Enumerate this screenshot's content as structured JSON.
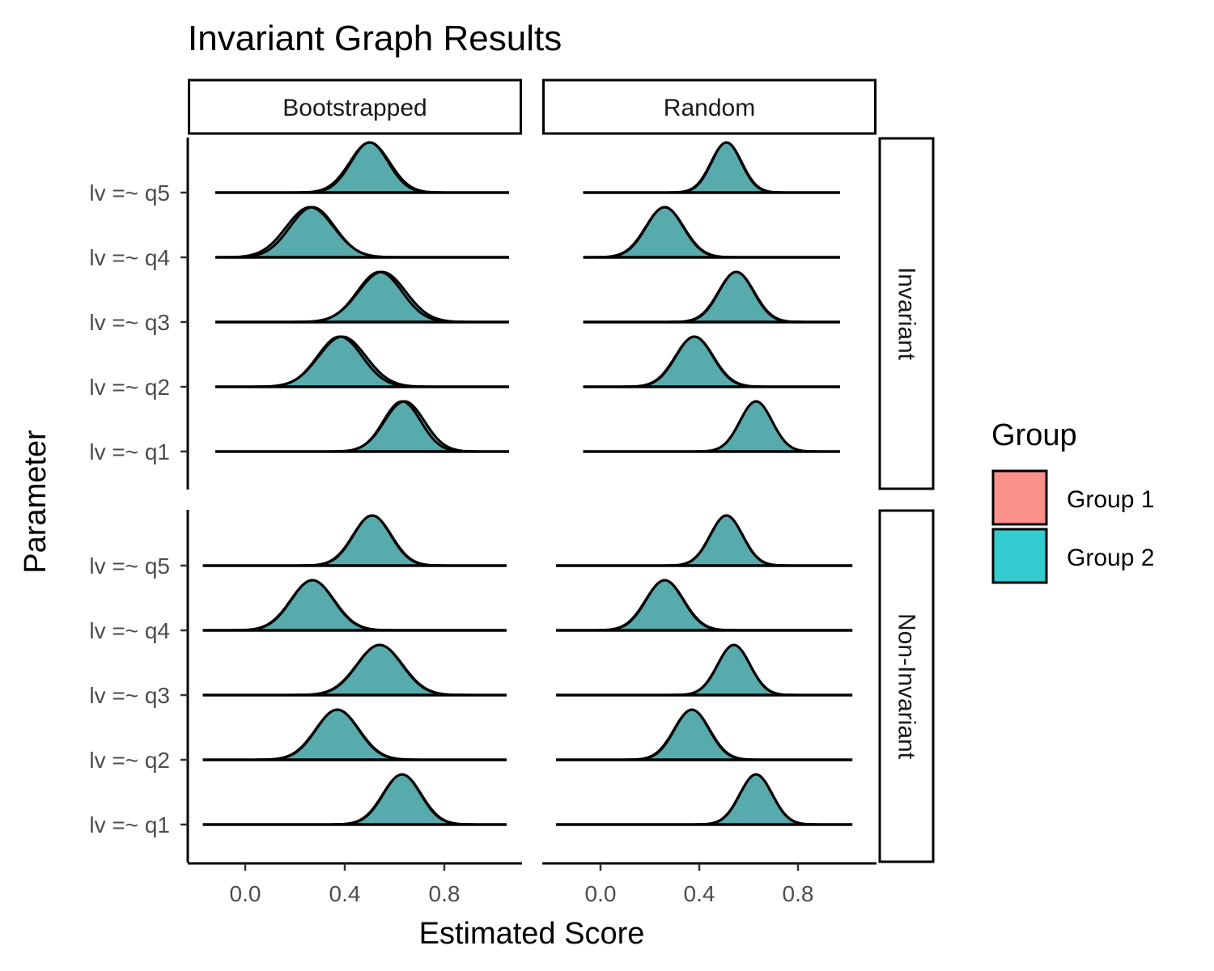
{
  "chart_data": {
    "type": "ridgeline",
    "title": "Invariant Graph Results",
    "xlabel": "Estimated Score",
    "ylabel": "Parameter",
    "x_ticks": [
      0.0,
      0.4,
      0.8
    ],
    "x_tick_labels": [
      "0.0",
      "0.4",
      "0.8"
    ],
    "xlim": [
      -0.2,
      1.1
    ],
    "columns": [
      "Bootstrapped",
      "Random"
    ],
    "rows": [
      "Invariant",
      "Non-Invariant"
    ],
    "parameters": [
      "lv =~ q1",
      "lv =~ q2",
      "lv =~ q3",
      "lv =~ q4",
      "lv =~ q5"
    ],
    "legend": {
      "title": "Group",
      "position": "right",
      "entries": [
        {
          "name": "Group 1",
          "color": "#F8766D"
        },
        {
          "name": "Group 2",
          "color": "#00BFC4"
        }
      ]
    },
    "panels": [
      {
        "column": "Bootstrapped",
        "row": "Invariant",
        "x_range": [
          -0.12,
          1.06
        ],
        "series": [
          {
            "parameter": "lv =~ q1",
            "g1": {
              "mean": 0.63,
              "sd": 0.075
            },
            "g2": {
              "mean": 0.64,
              "sd": 0.08
            }
          },
          {
            "parameter": "lv =~ q2",
            "g1": {
              "mean": 0.38,
              "sd": 0.09
            },
            "g2": {
              "mean": 0.39,
              "sd": 0.095
            }
          },
          {
            "parameter": "lv =~ q3",
            "g1": {
              "mean": 0.54,
              "sd": 0.09
            },
            "g2": {
              "mean": 0.55,
              "sd": 0.095
            }
          },
          {
            "parameter": "lv =~ q4",
            "g1": {
              "mean": 0.27,
              "sd": 0.09
            },
            "g2": {
              "mean": 0.26,
              "sd": 0.095
            }
          },
          {
            "parameter": "lv =~ q5",
            "g1": {
              "mean": 0.5,
              "sd": 0.075
            },
            "g2": {
              "mean": 0.5,
              "sd": 0.08
            }
          }
        ]
      },
      {
        "column": "Random",
        "row": "Invariant",
        "x_range": [
          -0.07,
          0.97
        ],
        "series": [
          {
            "parameter": "lv =~ q1",
            "g1": {
              "mean": 0.63,
              "sd": 0.065
            },
            "g2": {
              "mean": 0.63,
              "sd": 0.065
            }
          },
          {
            "parameter": "lv =~ q2",
            "g1": {
              "mean": 0.38,
              "sd": 0.075
            },
            "g2": {
              "mean": 0.38,
              "sd": 0.077
            }
          },
          {
            "parameter": "lv =~ q3",
            "g1": {
              "mean": 0.55,
              "sd": 0.07
            },
            "g2": {
              "mean": 0.55,
              "sd": 0.072
            }
          },
          {
            "parameter": "lv =~ q4",
            "g1": {
              "mean": 0.26,
              "sd": 0.075
            },
            "g2": {
              "mean": 0.26,
              "sd": 0.077
            }
          },
          {
            "parameter": "lv =~ q5",
            "g1": {
              "mean": 0.51,
              "sd": 0.06
            },
            "g2": {
              "mean": 0.51,
              "sd": 0.062
            }
          }
        ]
      },
      {
        "column": "Bootstrapped",
        "row": "Non-Invariant",
        "x_range": [
          -0.17,
          1.05
        ],
        "series": [
          {
            "parameter": "lv =~ q1",
            "g1": {
              "mean": 0.63,
              "sd": 0.075
            },
            "g2": {
              "mean": 0.63,
              "sd": 0.077
            }
          },
          {
            "parameter": "lv =~ q2",
            "g1": {
              "mean": 0.37,
              "sd": 0.085
            },
            "g2": {
              "mean": 0.37,
              "sd": 0.087
            }
          },
          {
            "parameter": "lv =~ q3",
            "g1": {
              "mean": 0.54,
              "sd": 0.09
            },
            "g2": {
              "mean": 0.54,
              "sd": 0.092
            }
          },
          {
            "parameter": "lv =~ q4",
            "g1": {
              "mean": 0.27,
              "sd": 0.085
            },
            "g2": {
              "mean": 0.27,
              "sd": 0.087
            }
          },
          {
            "parameter": "lv =~ q5",
            "g1": {
              "mean": 0.51,
              "sd": 0.075
            },
            "g2": {
              "mean": 0.51,
              "sd": 0.077
            }
          }
        ]
      },
      {
        "column": "Random",
        "row": "Non-Invariant",
        "x_range": [
          -0.18,
          1.02
        ],
        "series": [
          {
            "parameter": "lv =~ q1",
            "g1": {
              "mean": 0.63,
              "sd": 0.065
            },
            "g2": {
              "mean": 0.63,
              "sd": 0.066
            }
          },
          {
            "parameter": "lv =~ q2",
            "g1": {
              "mean": 0.37,
              "sd": 0.07
            },
            "g2": {
              "mean": 0.37,
              "sd": 0.072
            }
          },
          {
            "parameter": "lv =~ q3",
            "g1": {
              "mean": 0.54,
              "sd": 0.065
            },
            "g2": {
              "mean": 0.54,
              "sd": 0.066
            }
          },
          {
            "parameter": "lv =~ q4",
            "g1": {
              "mean": 0.26,
              "sd": 0.075
            },
            "g2": {
              "mean": 0.26,
              "sd": 0.077
            }
          },
          {
            "parameter": "lv =~ q5",
            "g1": {
              "mean": 0.51,
              "sd": 0.065
            },
            "g2": {
              "mean": 0.51,
              "sd": 0.066
            }
          }
        ]
      }
    ]
  }
}
